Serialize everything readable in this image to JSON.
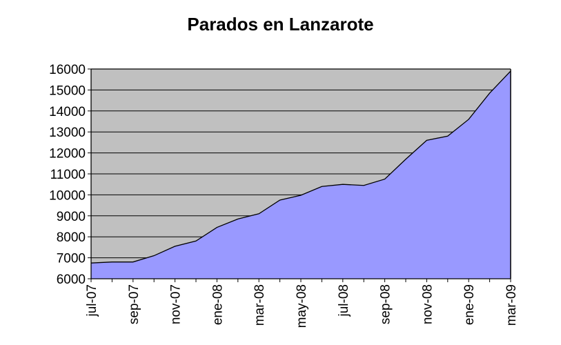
{
  "chart_data": {
    "type": "area",
    "title": "Parados en Lanzarote",
    "xlabel": "",
    "ylabel": "",
    "ylim": [
      6000,
      16000
    ],
    "yticks": [
      6000,
      7000,
      8000,
      9000,
      10000,
      11000,
      12000,
      13000,
      14000,
      15000,
      16000
    ],
    "x": [
      "jul-07",
      "ago-07",
      "sep-07",
      "oct-07",
      "nov-07",
      "dic-07",
      "ene-08",
      "feb-08",
      "mar-08",
      "abr-08",
      "may-08",
      "jun-08",
      "jul-08",
      "ago-08",
      "sep-08",
      "oct-08",
      "nov-08",
      "dic-08",
      "ene-09",
      "feb-09",
      "mar-09"
    ],
    "xtick_labels": [
      "jul-07",
      "sep-07",
      "nov-07",
      "ene-08",
      "mar-08",
      "may-08",
      "jul-08",
      "sep-08",
      "nov-08",
      "ene-09",
      "mar-09"
    ],
    "series": [
      {
        "values": [
          6750,
          6800,
          6800,
          7100,
          7550,
          7800,
          8450,
          8850,
          9100,
          9750,
          9980,
          10400,
          10500,
          10450,
          10750,
          11700,
          12600,
          12800,
          13600,
          14850,
          15900
        ]
      }
    ],
    "grid": true,
    "legend": "none",
    "colors": {
      "plot_background": "#c0c0c0",
      "area_fill": "#9999ff",
      "line": "#000000",
      "gridline": "#000000"
    }
  }
}
